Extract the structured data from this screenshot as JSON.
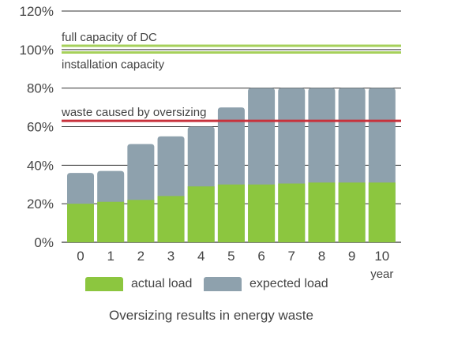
{
  "chart_data": {
    "type": "bar",
    "stacked": true,
    "categories": [
      "0",
      "1",
      "2",
      "3",
      "4",
      "5",
      "6",
      "7",
      "8",
      "9",
      "10"
    ],
    "series": [
      {
        "name": "actual load",
        "values": [
          20,
          21,
          22,
          24,
          29,
          30,
          30,
          30.5,
          31,
          31,
          31
        ],
        "color": "#8cc63f"
      },
      {
        "name": "expected load",
        "values": [
          36,
          37,
          51,
          55,
          60,
          70,
          80,
          80,
          80,
          80,
          80
        ],
        "color": "#8ea1ad"
      }
    ],
    "y_ticks": [
      "0%",
      "20%",
      "40%",
      "60%",
      "80%",
      "100%",
      "120%"
    ],
    "ylim": [
      0,
      120
    ],
    "x_unit_label": "year",
    "reference_lines": [
      {
        "value": 102,
        "color": "#a6d05a",
        "label": "full capacity of DC",
        "label_side": "above"
      },
      {
        "value": 98.5,
        "color": "#a6d05a",
        "label": "installation capacity",
        "label_side": "below"
      },
      {
        "value": 63,
        "color": "#c8323c",
        "label": "waste caused by oversizing",
        "label_side": "above"
      }
    ],
    "grid": true,
    "legend": [
      {
        "label": "actual load",
        "color": "#8cc63f"
      },
      {
        "label": "expected load",
        "color": "#8ea1ad"
      }
    ],
    "caption": "Oversizing results in energy waste"
  }
}
